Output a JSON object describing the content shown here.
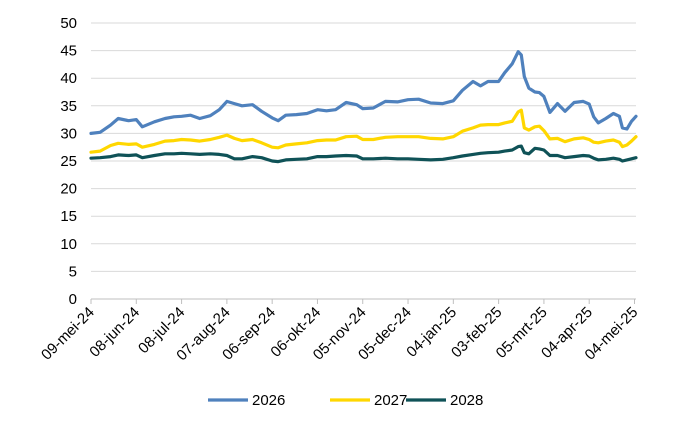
{
  "chart_data": {
    "type": "line",
    "title": "",
    "xlabel": "",
    "ylabel": "",
    "ylim": [
      0,
      50
    ],
    "y_ticks": [
      0,
      5,
      10,
      15,
      20,
      25,
      30,
      35,
      40,
      45,
      50
    ],
    "grid": "horizontal",
    "legend_position": "bottom",
    "x_tick_labels": [
      "09-mei-24",
      "08-jun-24",
      "08-jul-24",
      "07-aug-24",
      "06-sep-24",
      "06-okt-24",
      "05-nov-24",
      "05-dec-24",
      "04-jan-25",
      "03-feb-25",
      "05-mrt-25",
      "04-apr-25",
      "04-mei-25"
    ],
    "x": [
      "09-mei-24",
      "08-jun-24",
      "08-jul-24",
      "07-aug-24",
      "06-sep-24",
      "06-okt-24",
      "05-nov-24",
      "05-dec-24",
      "04-jan-25",
      "03-feb-25",
      "05-mrt-25",
      "04-apr-25",
      "04-mei-25"
    ],
    "series": [
      {
        "name": "2026",
        "color": "#4f81bd",
        "points": [
          [
            "2024-05-09",
            30.0
          ],
          [
            "2024-05-15",
            30.2
          ],
          [
            "2024-05-22",
            31.5
          ],
          [
            "2024-05-27",
            32.7
          ],
          [
            "2024-06-03",
            32.3
          ],
          [
            "2024-06-08",
            32.5
          ],
          [
            "2024-06-12",
            31.2
          ],
          [
            "2024-06-20",
            32.1
          ],
          [
            "2024-06-27",
            32.7
          ],
          [
            "2024-07-03",
            33.0
          ],
          [
            "2024-07-08",
            33.1
          ],
          [
            "2024-07-14",
            33.3
          ],
          [
            "2024-07-20",
            32.7
          ],
          [
            "2024-07-27",
            33.2
          ],
          [
            "2024-08-02",
            34.3
          ],
          [
            "2024-08-07",
            35.8
          ],
          [
            "2024-08-12",
            35.4
          ],
          [
            "2024-08-17",
            35.0
          ],
          [
            "2024-08-24",
            35.2
          ],
          [
            "2024-08-30",
            34.0
          ],
          [
            "2024-09-06",
            32.8
          ],
          [
            "2024-09-10",
            32.3
          ],
          [
            "2024-09-15",
            33.3
          ],
          [
            "2024-09-22",
            33.4
          ],
          [
            "2024-09-29",
            33.6
          ],
          [
            "2024-10-06",
            34.3
          ],
          [
            "2024-10-12",
            34.1
          ],
          [
            "2024-10-18",
            34.3
          ],
          [
            "2024-10-25",
            35.6
          ],
          [
            "2024-11-01",
            35.2
          ],
          [
            "2024-11-05",
            34.5
          ],
          [
            "2024-11-12",
            34.6
          ],
          [
            "2024-11-20",
            35.8
          ],
          [
            "2024-11-28",
            35.7
          ],
          [
            "2024-12-05",
            36.1
          ],
          [
            "2024-12-12",
            36.2
          ],
          [
            "2024-12-20",
            35.5
          ],
          [
            "2024-12-28",
            35.4
          ],
          [
            "2025-01-04",
            35.9
          ],
          [
            "2025-01-10",
            37.8
          ],
          [
            "2025-01-17",
            39.4
          ],
          [
            "2025-01-22",
            38.6
          ],
          [
            "2025-01-27",
            39.4
          ],
          [
            "2025-02-03",
            39.4
          ],
          [
            "2025-02-07",
            41.0
          ],
          [
            "2025-02-12",
            42.6
          ],
          [
            "2025-02-16",
            44.8
          ],
          [
            "2025-02-18",
            44.2
          ],
          [
            "2025-02-20",
            40.3
          ],
          [
            "2025-02-23",
            38.2
          ],
          [
            "2025-02-27",
            37.5
          ],
          [
            "2025-03-02",
            37.4
          ],
          [
            "2025-03-05",
            36.7
          ],
          [
            "2025-03-09",
            33.8
          ],
          [
            "2025-03-14",
            35.4
          ],
          [
            "2025-03-19",
            34.0
          ],
          [
            "2025-03-25",
            35.6
          ],
          [
            "2025-03-31",
            35.8
          ],
          [
            "2025-04-04",
            35.3
          ],
          [
            "2025-04-07",
            33.0
          ],
          [
            "2025-04-10",
            31.9
          ],
          [
            "2025-04-15",
            32.7
          ],
          [
            "2025-04-20",
            33.6
          ],
          [
            "2025-04-24",
            33.1
          ],
          [
            "2025-04-26",
            31.0
          ],
          [
            "2025-04-29",
            30.8
          ],
          [
            "2025-05-02",
            32.2
          ],
          [
            "2025-05-05",
            33.1
          ]
        ]
      },
      {
        "name": "2027",
        "color": "#ffd700",
        "points": [
          [
            "2024-05-09",
            26.6
          ],
          [
            "2024-05-15",
            26.8
          ],
          [
            "2024-05-22",
            27.8
          ],
          [
            "2024-05-27",
            28.2
          ],
          [
            "2024-06-03",
            28.0
          ],
          [
            "2024-06-08",
            28.1
          ],
          [
            "2024-06-12",
            27.5
          ],
          [
            "2024-06-20",
            28.0
          ],
          [
            "2024-06-27",
            28.6
          ],
          [
            "2024-07-03",
            28.7
          ],
          [
            "2024-07-08",
            28.9
          ],
          [
            "2024-07-14",
            28.8
          ],
          [
            "2024-07-20",
            28.6
          ],
          [
            "2024-07-27",
            28.9
          ],
          [
            "2024-08-02",
            29.3
          ],
          [
            "2024-08-07",
            29.7
          ],
          [
            "2024-08-12",
            29.1
          ],
          [
            "2024-08-17",
            28.7
          ],
          [
            "2024-08-24",
            28.9
          ],
          [
            "2024-08-30",
            28.3
          ],
          [
            "2024-09-06",
            27.5
          ],
          [
            "2024-09-10",
            27.4
          ],
          [
            "2024-09-15",
            27.9
          ],
          [
            "2024-09-22",
            28.1
          ],
          [
            "2024-09-29",
            28.3
          ],
          [
            "2024-10-06",
            28.7
          ],
          [
            "2024-10-12",
            28.8
          ],
          [
            "2024-10-18",
            28.8
          ],
          [
            "2024-10-25",
            29.4
          ],
          [
            "2024-11-01",
            29.5
          ],
          [
            "2024-11-05",
            28.9
          ],
          [
            "2024-11-12",
            28.9
          ],
          [
            "2024-11-20",
            29.3
          ],
          [
            "2024-11-28",
            29.4
          ],
          [
            "2024-12-05",
            29.4
          ],
          [
            "2024-12-12",
            29.4
          ],
          [
            "2024-12-20",
            29.1
          ],
          [
            "2024-12-28",
            29.0
          ],
          [
            "2025-01-04",
            29.4
          ],
          [
            "2025-01-10",
            30.4
          ],
          [
            "2025-01-17",
            31.0
          ],
          [
            "2025-01-22",
            31.5
          ],
          [
            "2025-01-27",
            31.6
          ],
          [
            "2025-02-03",
            31.6
          ],
          [
            "2025-02-07",
            31.9
          ],
          [
            "2025-02-12",
            32.2
          ],
          [
            "2025-02-16",
            33.9
          ],
          [
            "2025-02-18",
            34.2
          ],
          [
            "2025-02-20",
            31.0
          ],
          [
            "2025-02-23",
            30.6
          ],
          [
            "2025-02-27",
            31.2
          ],
          [
            "2025-03-02",
            31.3
          ],
          [
            "2025-03-05",
            30.5
          ],
          [
            "2025-03-09",
            29.0
          ],
          [
            "2025-03-14",
            29.1
          ],
          [
            "2025-03-19",
            28.5
          ],
          [
            "2025-03-25",
            29.0
          ],
          [
            "2025-03-31",
            29.2
          ],
          [
            "2025-04-04",
            28.9
          ],
          [
            "2025-04-07",
            28.4
          ],
          [
            "2025-04-10",
            28.3
          ],
          [
            "2025-04-15",
            28.6
          ],
          [
            "2025-04-20",
            28.8
          ],
          [
            "2025-04-24",
            28.4
          ],
          [
            "2025-04-26",
            27.6
          ],
          [
            "2025-04-29",
            27.9
          ],
          [
            "2025-05-02",
            28.6
          ],
          [
            "2025-05-05",
            29.4
          ]
        ]
      },
      {
        "name": "2028",
        "color": "#0f5257",
        "points": [
          [
            "2024-05-09",
            25.5
          ],
          [
            "2024-05-15",
            25.6
          ],
          [
            "2024-05-22",
            25.8
          ],
          [
            "2024-05-27",
            26.1
          ],
          [
            "2024-06-03",
            26.0
          ],
          [
            "2024-06-08",
            26.1
          ],
          [
            "2024-06-12",
            25.6
          ],
          [
            "2024-06-20",
            26.0
          ],
          [
            "2024-06-27",
            26.3
          ],
          [
            "2024-07-03",
            26.3
          ],
          [
            "2024-07-08",
            26.4
          ],
          [
            "2024-07-14",
            26.3
          ],
          [
            "2024-07-20",
            26.2
          ],
          [
            "2024-07-27",
            26.3
          ],
          [
            "2024-08-02",
            26.2
          ],
          [
            "2024-08-07",
            26.0
          ],
          [
            "2024-08-12",
            25.4
          ],
          [
            "2024-08-17",
            25.4
          ],
          [
            "2024-08-24",
            25.8
          ],
          [
            "2024-08-30",
            25.6
          ],
          [
            "2024-09-06",
            25.0
          ],
          [
            "2024-09-10",
            24.9
          ],
          [
            "2024-09-15",
            25.2
          ],
          [
            "2024-09-22",
            25.3
          ],
          [
            "2024-09-29",
            25.4
          ],
          [
            "2024-10-06",
            25.8
          ],
          [
            "2024-10-12",
            25.8
          ],
          [
            "2024-10-18",
            25.9
          ],
          [
            "2024-10-25",
            26.0
          ],
          [
            "2024-11-01",
            25.9
          ],
          [
            "2024-11-05",
            25.4
          ],
          [
            "2024-11-12",
            25.4
          ],
          [
            "2024-11-20",
            25.5
          ],
          [
            "2024-11-28",
            25.4
          ],
          [
            "2024-12-05",
            25.4
          ],
          [
            "2024-12-12",
            25.3
          ],
          [
            "2024-12-20",
            25.2
          ],
          [
            "2024-12-28",
            25.3
          ],
          [
            "2025-01-04",
            25.6
          ],
          [
            "2025-01-10",
            25.9
          ],
          [
            "2025-01-17",
            26.2
          ],
          [
            "2025-01-22",
            26.4
          ],
          [
            "2025-01-27",
            26.5
          ],
          [
            "2025-02-03",
            26.6
          ],
          [
            "2025-02-07",
            26.8
          ],
          [
            "2025-02-12",
            27.0
          ],
          [
            "2025-02-16",
            27.6
          ],
          [
            "2025-02-18",
            27.7
          ],
          [
            "2025-02-20",
            26.5
          ],
          [
            "2025-02-23",
            26.3
          ],
          [
            "2025-02-27",
            27.3
          ],
          [
            "2025-03-02",
            27.2
          ],
          [
            "2025-03-05",
            27.0
          ],
          [
            "2025-03-09",
            26.0
          ],
          [
            "2025-03-14",
            26.0
          ],
          [
            "2025-03-19",
            25.6
          ],
          [
            "2025-03-25",
            25.8
          ],
          [
            "2025-03-31",
            26.0
          ],
          [
            "2025-04-04",
            25.9
          ],
          [
            "2025-04-07",
            25.5
          ],
          [
            "2025-04-10",
            25.2
          ],
          [
            "2025-04-15",
            25.3
          ],
          [
            "2025-04-20",
            25.5
          ],
          [
            "2025-04-24",
            25.3
          ],
          [
            "2025-04-26",
            25.0
          ],
          [
            "2025-04-29",
            25.2
          ],
          [
            "2025-05-02",
            25.4
          ],
          [
            "2025-05-05",
            25.6
          ]
        ]
      }
    ]
  }
}
